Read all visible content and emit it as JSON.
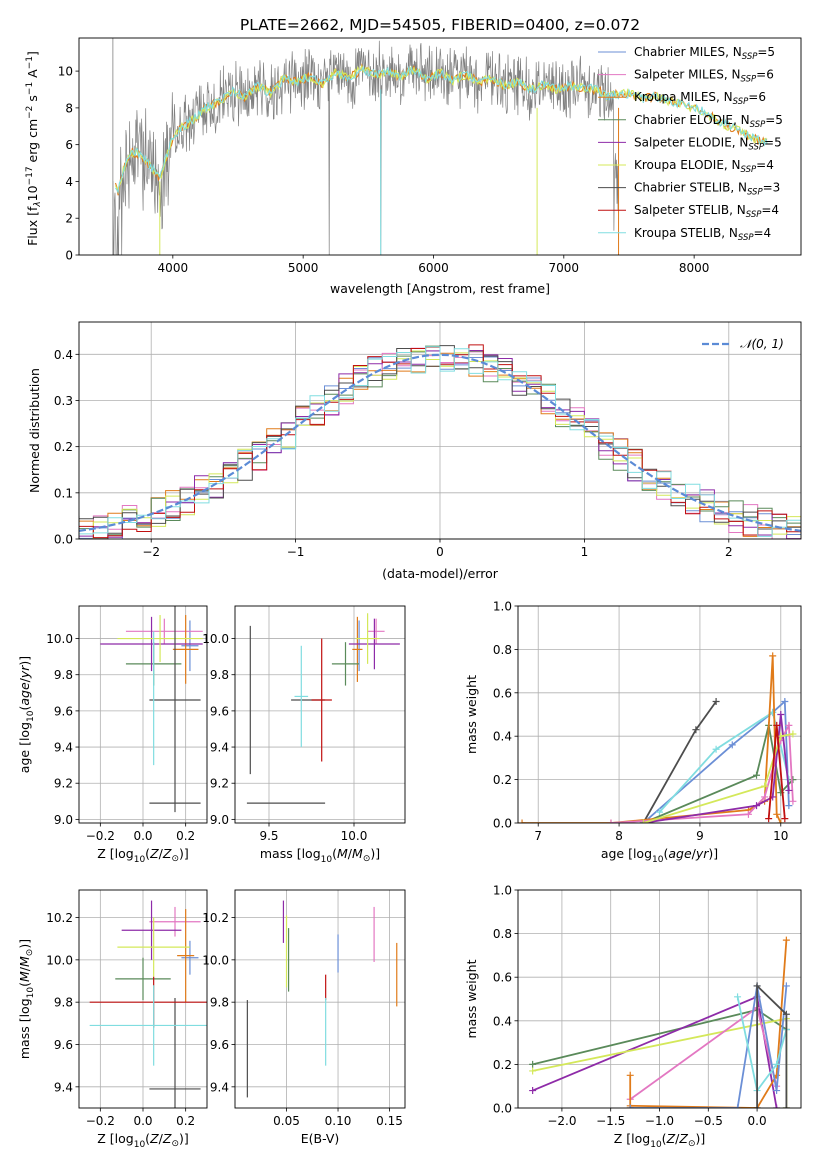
{
  "title": "PLATE=2662, MJD=54505, FIBERID=0400, z=0.072",
  "legend": [
    {
      "label": "Chabrier MILES, N",
      "sub": "SSP",
      "suffix": "=5",
      "color": "#6b8fd6"
    },
    {
      "label": "Salpeter MILES, N",
      "sub": "SSP",
      "suffix": "=6",
      "color": "#e377c2"
    },
    {
      "label": "Kroupa MILES, N",
      "sub": "SSP",
      "suffix": "=6",
      "color": "#e07b1a"
    },
    {
      "label": "Chabrier ELODIE, N",
      "sub": "SSP",
      "suffix": "=5",
      "color": "#5a8a5a"
    },
    {
      "label": "Salpeter ELODIE, N",
      "sub": "SSP",
      "suffix": "=5",
      "color": "#8e2ba8"
    },
    {
      "label": "Kroupa ELODIE, N",
      "sub": "SSP",
      "suffix": "=4",
      "color": "#d4e85a"
    },
    {
      "label": "Chabrier STELIB, N",
      "sub": "SSP",
      "suffix": "=3",
      "color": "#4d4d4d"
    },
    {
      "label": "Salpeter STELIB, N",
      "sub": "SSP",
      "suffix": "=4",
      "color": "#c01010"
    },
    {
      "label": "Kroupa STELIB, N",
      "sub": "SSP",
      "suffix": "=4",
      "color": "#80dde0"
    }
  ],
  "chart_data": [
    {
      "id": "spectrum",
      "type": "line",
      "xlabel": "wavelength [Angstrom, rest frame]",
      "ylabel": "Flux [f_λ 10^-17 erg cm^-2 s^-1 A^-1]",
      "ylabel_parts": {
        "a": "Flux [f",
        "b": "λ",
        "c": "10",
        "d": "−17",
        "e": " erg cm",
        "f": "−2",
        "g": " s",
        "h": "−1",
        "i": " A",
        "j": "−1",
        "k": "]"
      },
      "xlim": [
        3280,
        8820
      ],
      "ylim": [
        0,
        11.8
      ],
      "xticks": [
        4000,
        5000,
        6000,
        7000,
        8000
      ],
      "yticks": [
        0,
        2,
        4,
        6,
        8,
        10
      ],
      "data_color": "#808080",
      "continuum": {
        "x": [
          3540,
          3580,
          3620,
          3680,
          3750,
          3820,
          3900,
          3960,
          4000,
          4080,
          4150,
          4250,
          4350,
          4450,
          4550,
          4650,
          4750,
          4850,
          4950,
          5050,
          5150,
          5250,
          5350,
          5450,
          5550,
          5650,
          5750,
          5850,
          5950,
          6050,
          6150,
          6250,
          6350,
          6450,
          6550,
          6650,
          6750,
          6850,
          6950,
          7050,
          7150,
          7250,
          7350,
          7400,
          7500,
          7600,
          7700,
          7800,
          7900,
          8000,
          8100,
          8200,
          8300,
          8400,
          8500,
          8560
        ],
        "y": [
          4.0,
          3.4,
          4.6,
          5.6,
          5.5,
          4.9,
          4.2,
          5.5,
          6.4,
          7.0,
          7.3,
          8.0,
          8.3,
          8.9,
          8.6,
          9.2,
          8.8,
          9.6,
          9.4,
          9.7,
          9.3,
          9.9,
          9.6,
          10.1,
          9.8,
          10.0,
          9.7,
          10.1,
          9.6,
          9.9,
          9.5,
          9.8,
          9.4,
          9.6,
          9.2,
          9.4,
          9.0,
          9.3,
          9.0,
          9.2,
          9.1,
          9.0,
          8.6,
          8.7,
          8.8,
          8.5,
          8.6,
          8.4,
          8.2,
          8.0,
          7.7,
          7.2,
          6.9,
          6.6,
          6.2,
          6.1
        ]
      }
    },
    {
      "id": "residuals",
      "type": "step",
      "xlabel": "(data-model)/error",
      "ylabel": "Normed distribution",
      "xlim": [
        -2.5,
        2.5
      ],
      "ylim": [
        0,
        0.47
      ],
      "xticks": [
        -2,
        -1,
        0,
        1,
        2
      ],
      "yticks": [
        0.0,
        0.1,
        0.2,
        0.3,
        0.4
      ],
      "gaussian_label": "𝒩(0, 1)",
      "gaussian_color": "#5b8bd6",
      "bin_width": 0.1
    },
    {
      "id": "age_vs_Z",
      "type": "errorbar",
      "xlabel": "Z [log10(Z/Z⊙)]",
      "ylabel": "age  [log10(age/yr)]",
      "xlim": [
        -0.3,
        0.3
      ],
      "ylim": [
        8.98,
        10.18
      ],
      "xticks": [
        -0.2,
        0.0,
        0.2
      ],
      "yticks": [
        9.0,
        9.2,
        9.4,
        9.6,
        9.8,
        10.0
      ],
      "points": [
        {
          "series": 0,
          "x": 0.22,
          "y": 9.96,
          "xerr": 0.04,
          "yerr": 0.14
        },
        {
          "series": 1,
          "x": 0.1,
          "y": 10.04,
          "xerr": 0.18,
          "yerr": 0.07
        },
        {
          "series": 2,
          "x": 0.2,
          "y": 9.94,
          "xerr": 0.06,
          "yerr": 0.19
        },
        {
          "series": 3,
          "x": 0.05,
          "y": 9.86,
          "xerr": 0.13,
          "yerr": 0.12
        },
        {
          "series": 4,
          "x": 0.04,
          "y": 9.97,
          "xerr": 0.24,
          "yerr": 0.15
        },
        {
          "series": 5,
          "x": 0.08,
          "y": 10.0,
          "xerr": 0.2,
          "yerr": 0.13
        },
        {
          "series": 6,
          "x": 0.15,
          "y": 9.66,
          "xerr": 0.12,
          "yerr": 0.62
        },
        {
          "series": 6,
          "x": 0.15,
          "y": 9.09,
          "xerr": 0.12,
          "yerr": 0.0
        },
        {
          "series": 8,
          "x": 0.05,
          "y": 9.67,
          "xerr": 0.0,
          "yerr": 0.37
        }
      ]
    },
    {
      "id": "age_vs_mass",
      "type": "errorbar",
      "xlabel": "mass [log10(M/M⊙)]",
      "ylabel": "",
      "xlim": [
        9.3,
        10.3
      ],
      "ylim": [
        8.98,
        10.18
      ],
      "xticks": [
        9.5,
        10.0
      ],
      "yticks": [
        9.0,
        9.2,
        9.4,
        9.6,
        9.8,
        10.0
      ],
      "points": [
        {
          "series": 0,
          "x": 10.03,
          "y": 9.96,
          "xerr": 0.0,
          "yerr": 0.14
        },
        {
          "series": 1,
          "x": 10.13,
          "y": 10.04,
          "xerr": 0.05,
          "yerr": 0.07
        },
        {
          "series": 2,
          "x": 10.02,
          "y": 9.94,
          "xerr": 0.03,
          "yerr": 0.18
        },
        {
          "series": 3,
          "x": 9.95,
          "y": 9.86,
          "xerr": 0.08,
          "yerr": 0.12
        },
        {
          "series": 4,
          "x": 10.12,
          "y": 9.97,
          "xerr": 0.15,
          "yerr": 0.14
        },
        {
          "series": 5,
          "x": 10.08,
          "y": 10.0,
          "xerr": 0.07,
          "yerr": 0.14
        },
        {
          "series": 6,
          "x": 9.39,
          "y": 9.66,
          "xerr": 0.0,
          "yerr": 0.41
        },
        {
          "series": 6,
          "x": 9.6,
          "y": 9.09,
          "xerr": 0.23,
          "yerr": 0.0
        },
        {
          "series": 6,
          "x": 9.73,
          "y": 9.66,
          "xerr": 0.1,
          "yerr": 0.0
        },
        {
          "series": 7,
          "x": 9.81,
          "y": 9.66,
          "xerr": 0.06,
          "yerr": 0.34
        },
        {
          "series": 8,
          "x": 9.69,
          "y": 9.68,
          "xerr": 0.04,
          "yerr": 0.28
        }
      ]
    },
    {
      "id": "mass_weight_vs_age",
      "type": "line",
      "xlabel": "age  [log10(age/yr)]",
      "ylabel": "mass weight",
      "xlim": [
        6.75,
        10.25
      ],
      "ylim": [
        0,
        1.0
      ],
      "xticks": [
        7,
        8,
        9,
        10
      ],
      "yticks": [
        0.0,
        0.2,
        0.4,
        0.6,
        0.8,
        1.0
      ],
      "series": [
        {
          "series": 6,
          "x": [
            8.3,
            8.95,
            9.2
          ],
          "y": [
            0.0,
            0.43,
            0.56
          ]
        },
        {
          "series": 0,
          "x": [
            8.3,
            9.4,
            9.9,
            10.05,
            10.1
          ],
          "y": [
            0.0,
            0.36,
            0.51,
            0.56,
            0.08
          ]
        },
        {
          "series": 8,
          "x": [
            8.5,
            9.2,
            9.9,
            10.1
          ],
          "y": [
            0.05,
            0.34,
            0.51,
            0.2
          ]
        },
        {
          "series": 3,
          "x": [
            8.3,
            9.7,
            9.85,
            10.0,
            10.15
          ],
          "y": [
            0.0,
            0.22,
            0.45,
            0.14,
            0.2
          ]
        },
        {
          "series": 2,
          "x": [
            6.8,
            7.9,
            9.6,
            9.8,
            9.9,
            9.95,
            10.0
          ],
          "y": [
            0.0,
            0.0,
            0.06,
            0.1,
            0.77,
            0.04,
            0.0
          ]
        },
        {
          "series": 1,
          "x": [
            7.9,
            9.6,
            9.8,
            10.0,
            10.1,
            10.15
          ],
          "y": [
            0.0,
            0.04,
            0.12,
            0.38,
            0.45,
            0.1
          ]
        },
        {
          "series": 4,
          "x": [
            8.3,
            9.7,
            9.9,
            10.0,
            10.1
          ],
          "y": [
            0.0,
            0.08,
            0.12,
            0.5,
            0.15
          ]
        },
        {
          "series": 5,
          "x": [
            8.3,
            9.8,
            10.0,
            10.15
          ],
          "y": [
            0.0,
            0.17,
            0.4,
            0.41
          ]
        },
        {
          "series": 7,
          "x": [
            9.85,
            9.95,
            10.05
          ],
          "y": [
            0.02,
            0.45,
            0.02
          ]
        }
      ]
    },
    {
      "id": "mass_vs_Z",
      "type": "errorbar",
      "xlabel": "Z [log10(Z/Z⊙)]",
      "ylabel": "mass [log10(M/M⊙)]",
      "xlim": [
        -0.3,
        0.3
      ],
      "ylim": [
        9.3,
        10.33
      ],
      "xticks": [
        -0.2,
        0.0,
        0.2
      ],
      "yticks": [
        9.4,
        9.6,
        9.8,
        10.0,
        10.2
      ],
      "points": [
        {
          "series": 0,
          "x": 0.22,
          "y": 10.01,
          "xerr": 0.04,
          "yerr": 0.08
        },
        {
          "series": 1,
          "x": 0.15,
          "y": 10.18,
          "xerr": 0.12,
          "yerr": 0.07
        },
        {
          "series": 2,
          "x": 0.2,
          "y": 10.02,
          "xerr": 0.04,
          "yerr": 0.22
        },
        {
          "series": 3,
          "x": 0.0,
          "y": 9.91,
          "xerr": 0.13,
          "yerr": 0.1
        },
        {
          "series": 4,
          "x": 0.04,
          "y": 10.14,
          "xerr": 0.14,
          "yerr": 0.14
        },
        {
          "series": 5,
          "x": 0.05,
          "y": 10.06,
          "xerr": 0.17,
          "yerr": 0.14
        },
        {
          "series": 6,
          "x": 0.15,
          "y": 9.39,
          "xerr": 0.12,
          "yerr": 0.43
        },
        {
          "series": 7,
          "x": 0.05,
          "y": 9.8,
          "xerr": 0.3,
          "yerr": 0.12
        },
        {
          "series": 8,
          "x": 0.05,
          "y": 9.69,
          "xerr": 0.3,
          "yerr": 0.19
        }
      ]
    },
    {
      "id": "mass_vs_EBV",
      "type": "errorbar",
      "xlabel": "E(B-V)",
      "ylabel": "",
      "xlim": [
        0.0,
        0.165
      ],
      "ylim": [
        9.3,
        10.33
      ],
      "xticks": [
        0.05,
        0.1,
        0.15
      ],
      "yticks": [
        9.4,
        9.6,
        9.8,
        10.0,
        10.2
      ],
      "points": [
        {
          "series": 0,
          "x": 0.1,
          "y": 10.03,
          "xerr": 0.0,
          "yerr": 0.09
        },
        {
          "series": 1,
          "x": 0.135,
          "y": 10.12,
          "xerr": 0.0,
          "yerr": 0.13
        },
        {
          "series": 2,
          "x": 0.157,
          "y": 9.93,
          "xerr": 0.0,
          "yerr": 0.15
        },
        {
          "series": 3,
          "x": 0.052,
          "y": 10.0,
          "xerr": 0.0,
          "yerr": 0.15
        },
        {
          "series": 4,
          "x": 0.047,
          "y": 10.18,
          "xerr": 0.0,
          "yerr": 0.1
        },
        {
          "series": 5,
          "x": 0.05,
          "y": 10.04,
          "xerr": 0.0,
          "yerr": 0.17
        },
        {
          "series": 6,
          "x": 0.012,
          "y": 9.58,
          "xerr": 0.0,
          "yerr": 0.23
        },
        {
          "series": 7,
          "x": 0.088,
          "y": 9.87,
          "xerr": 0.0,
          "yerr": 0.06
        },
        {
          "series": 8,
          "x": 0.088,
          "y": 9.66,
          "xerr": 0.0,
          "yerr": 0.16
        }
      ]
    },
    {
      "id": "mass_weight_vs_Z",
      "type": "line",
      "xlabel": "Z [log10(Z/Z⊙)]",
      "ylabel": "mass weight",
      "xlim": [
        -2.45,
        0.45
      ],
      "ylim": [
        0,
        1.0
      ],
      "xticks": [
        -2.0,
        -1.5,
        -1.0,
        -0.5,
        0.0
      ],
      "yticks": [
        0.0,
        0.2,
        0.4,
        0.6,
        0.8,
        1.0
      ],
      "series": [
        {
          "series": 3,
          "x": [
            -2.3,
            0.0,
            0.3
          ],
          "y": [
            0.2,
            0.45,
            0.36
          ]
        },
        {
          "series": 4,
          "x": [
            -2.3,
            0.0,
            0.2
          ],
          "y": [
            0.08,
            0.51,
            0.0
          ]
        },
        {
          "series": 5,
          "x": [
            -2.3,
            0.3,
            0.3
          ],
          "y": [
            0.17,
            0.41,
            0.0
          ]
        },
        {
          "series": 1,
          "x": [
            -1.3,
            0.0,
            0.2
          ],
          "y": [
            0.04,
            0.46,
            0.1
          ]
        },
        {
          "series": 2,
          "x": [
            -1.3,
            0.0,
            0.2,
            0.3
          ],
          "y": [
            0.01,
            0.0,
            0.15,
            0.77
          ]
        },
        {
          "series": 2,
          "x": [
            -1.3,
            -1.3
          ],
          "y": [
            0.0,
            0.15
          ]
        },
        {
          "series": 0,
          "x": [
            -1.3,
            -0.2,
            0.0,
            0.2,
            0.3
          ],
          "y": [
            0.0,
            0.0,
            0.56,
            0.08,
            0.56
          ]
        },
        {
          "series": 8,
          "x": [
            -0.2,
            0.0,
            0.2,
            0.3
          ],
          "y": [
            0.51,
            0.08,
            0.2,
            0.36
          ]
        },
        {
          "series": 6,
          "x": [
            0.0,
            0.0,
            0.3,
            0.3
          ],
          "y": [
            0.0,
            0.56,
            0.43,
            0.0
          ]
        }
      ]
    }
  ]
}
